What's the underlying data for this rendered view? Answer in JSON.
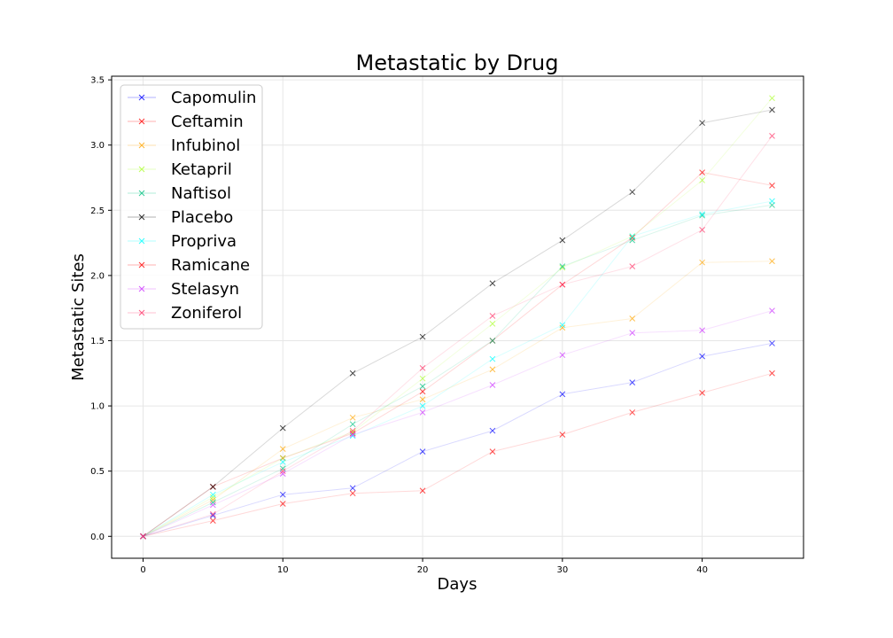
{
  "chart_data": {
    "type": "line",
    "title": "Metastatic by Drug",
    "xlabel": "Days",
    "ylabel": "Metastatic Sites",
    "xlim": [
      -2.25,
      47.25
    ],
    "ylim": [
      -0.168,
      3.528
    ],
    "xticks": [
      0,
      10,
      20,
      30,
      40
    ],
    "yticks": [
      0.0,
      0.5,
      1.0,
      1.5,
      2.0,
      2.5,
      3.0,
      3.5
    ],
    "grid": true,
    "legend_position": "upper left",
    "marker": "x",
    "x": [
      0,
      5,
      10,
      15,
      20,
      25,
      30,
      35,
      40,
      45
    ],
    "series": [
      {
        "name": "Capomulin",
        "color": "#0000ff",
        "values": [
          0.0,
          0.16,
          0.32,
          0.37,
          0.65,
          0.81,
          1.09,
          1.18,
          1.38,
          1.48
        ]
      },
      {
        "name": "Ceftamin",
        "color": "#ff0000",
        "values": [
          0.0,
          0.38,
          0.6,
          0.79,
          1.11,
          1.5,
          1.93,
          2.29,
          2.79,
          2.69
        ]
      },
      {
        "name": "Infubinol",
        "color": "#ffa500",
        "values": [
          0.0,
          0.28,
          0.67,
          0.91,
          1.05,
          1.28,
          1.6,
          1.67,
          2.1,
          2.11
        ]
      },
      {
        "name": "Ketapril",
        "color": "#adff2f",
        "values": [
          0.0,
          0.3,
          0.6,
          0.8,
          1.21,
          1.63,
          2.06,
          2.3,
          2.73,
          3.36
        ]
      },
      {
        "name": "Naftisol",
        "color": "#00c080",
        "values": [
          0.0,
          0.26,
          0.52,
          0.86,
          1.15,
          1.5,
          2.07,
          2.27,
          2.46,
          2.54
        ]
      },
      {
        "name": "Placebo",
        "color": "#000000",
        "values": [
          0.0,
          0.38,
          0.83,
          1.25,
          1.53,
          1.94,
          2.27,
          2.64,
          3.17,
          3.27
        ]
      },
      {
        "name": "Propriva",
        "color": "#00ffff",
        "values": [
          0.0,
          0.32,
          0.57,
          0.77,
          1.0,
          1.36,
          1.62,
          2.3,
          2.47,
          2.57
        ]
      },
      {
        "name": "Ramicane",
        "color": "#ff0000",
        "values": [
          0.0,
          0.12,
          0.25,
          0.33,
          0.35,
          0.65,
          0.78,
          0.95,
          1.1,
          1.25
        ]
      },
      {
        "name": "Stelasyn",
        "color": "#cc33ff",
        "values": [
          0.0,
          0.24,
          0.48,
          0.78,
          0.95,
          1.16,
          1.39,
          1.56,
          1.58,
          1.73
        ]
      },
      {
        "name": "Zoniferol",
        "color": "#ff3366",
        "values": [
          0.0,
          0.17,
          0.5,
          0.81,
          1.29,
          1.69,
          1.93,
          2.07,
          2.35,
          3.07
        ]
      }
    ]
  }
}
